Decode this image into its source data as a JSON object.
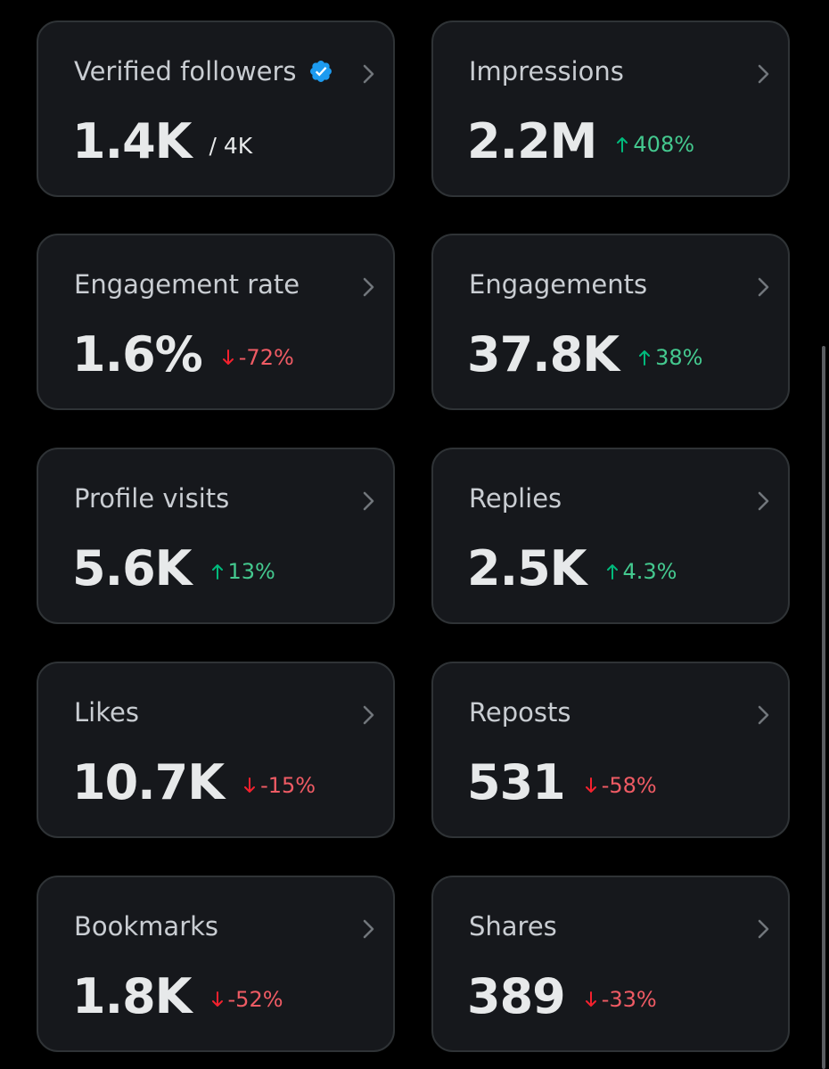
{
  "cards": [
    {
      "title": "Verified followers",
      "value": "1.4K",
      "suffix": "/ 4K",
      "verified": true
    },
    {
      "title": "Impressions",
      "value": "2.2M",
      "change": "408%",
      "direction": "up"
    },
    {
      "title": "Engagement rate",
      "value": "1.6%",
      "change": "-72%",
      "direction": "down"
    },
    {
      "title": "Engagements",
      "value": "37.8K",
      "change": "38%",
      "direction": "up"
    },
    {
      "title": "Profile visits",
      "value": "5.6K",
      "change": "13%",
      "direction": "up"
    },
    {
      "title": "Replies",
      "value": "2.5K",
      "change": "4.3%",
      "direction": "up"
    },
    {
      "title": "Likes",
      "value": "10.7K",
      "change": "-15%",
      "direction": "down"
    },
    {
      "title": "Reposts",
      "value": "531",
      "change": "-58%",
      "direction": "down"
    },
    {
      "title": "Bookmarks",
      "value": "1.8K",
      "change": "-52%",
      "direction": "down"
    },
    {
      "title": "Shares",
      "value": "389",
      "change": "-33%",
      "direction": "down"
    }
  ],
  "colors": {
    "background": "#000000",
    "card_background": "#16181c",
    "card_border": "#2f3336",
    "positive": "#00ba7c",
    "negative": "#f4212e",
    "verified_badge": "#1d9bf0"
  },
  "icons": {
    "verified": "verified-badge-icon",
    "chevron": "chevron-right-icon",
    "up": "arrow-up-icon",
    "down": "arrow-down-icon"
  }
}
